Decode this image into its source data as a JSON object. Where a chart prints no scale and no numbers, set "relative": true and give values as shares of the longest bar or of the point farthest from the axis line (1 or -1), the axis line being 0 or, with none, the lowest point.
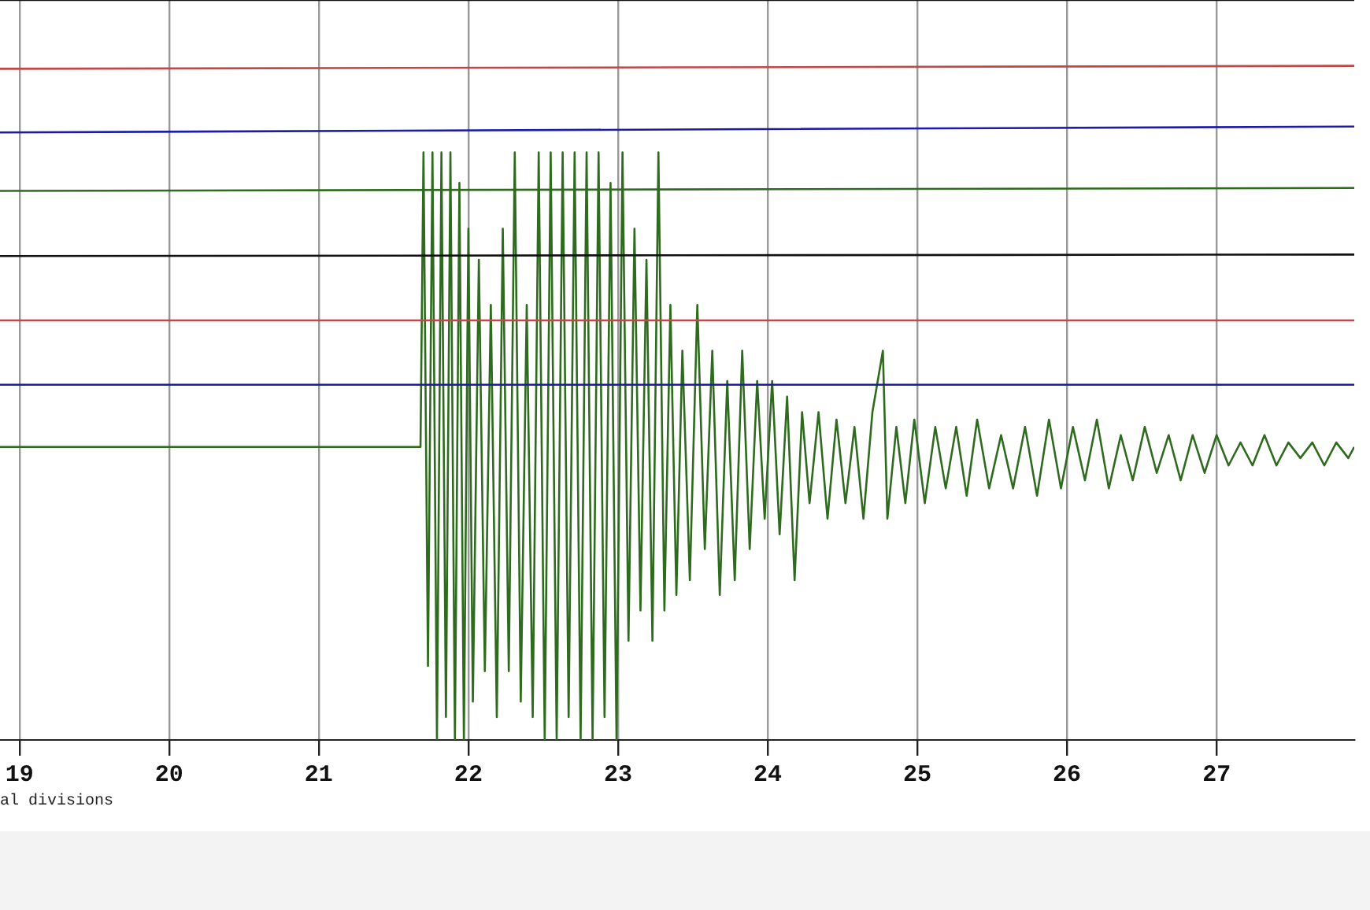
{
  "chart_data": {
    "type": "line",
    "relative": true,
    "grid": "x",
    "legend": false,
    "marker": "none",
    "xlim": [
      18.87,
      27.92
    ],
    "xticks": [
      19,
      20,
      21,
      22,
      23,
      24,
      25,
      26,
      27
    ],
    "annotations": [
      "al divisions"
    ],
    "series": [
      {
        "color": "#111111",
        "x": [
          18.87,
          23.4,
          27.92
        ],
        "values": [
          1,
          1,
          1
        ]
      },
      {
        "color": "#c04848",
        "x": [
          18.87,
          23.4,
          27.92
        ],
        "values": [
          0.907,
          0.909,
          0.911
        ]
      },
      {
        "color": "#1c1ca8",
        "x": [
          18.87,
          23.4,
          27.92
        ],
        "values": [
          0.821,
          0.825,
          0.829
        ]
      },
      {
        "color": "#2e6b1e",
        "x": [
          18.87,
          23.4,
          27.92
        ],
        "values": [
          0.742,
          0.744,
          0.746
        ]
      },
      {
        "color": "#111111",
        "x": [
          18.87,
          23.4,
          27.92
        ],
        "values": [
          0.654,
          0.655,
          0.656
        ]
      },
      {
        "color": "#c04848",
        "x": [
          18.87,
          23.4,
          27.92
        ],
        "values": [
          0.567,
          0.567,
          0.567
        ]
      },
      {
        "color": "#1c1ca8",
        "x": [
          18.87,
          23.4,
          27.92
        ],
        "values": [
          0.48,
          0.48,
          0.48
        ]
      },
      {
        "color": "#2e6b1e",
        "x": [
          18.87,
          21.68,
          21.7,
          21.73,
          21.76,
          21.79,
          21.82,
          21.85,
          21.88,
          21.91,
          21.94,
          21.97,
          22.0,
          22.03,
          22.07,
          22.11,
          22.15,
          22.19,
          22.23,
          22.27,
          22.31,
          22.35,
          22.39,
          22.43,
          22.47,
          22.51,
          22.55,
          22.59,
          22.63,
          22.67,
          22.71,
          22.75,
          22.79,
          22.83,
          22.87,
          22.91,
          22.95,
          22.99,
          23.03,
          23.07,
          23.11,
          23.15,
          23.19,
          23.23,
          23.27,
          23.31,
          23.35,
          23.39,
          23.43,
          23.48,
          23.53,
          23.58,
          23.63,
          23.68,
          23.73,
          23.78,
          23.83,
          23.88,
          23.93,
          23.98,
          24.03,
          24.08,
          24.13,
          24.18,
          24.23,
          24.28,
          24.34,
          24.4,
          24.46,
          24.52,
          24.58,
          24.64,
          24.7,
          24.77,
          24.8,
          24.86,
          24.92,
          24.98,
          25.05,
          25.12,
          25.19,
          25.26,
          25.33,
          25.4,
          25.48,
          25.56,
          25.64,
          25.72,
          25.8,
          25.88,
          25.96,
          26.04,
          26.12,
          26.2,
          26.28,
          26.36,
          26.44,
          26.52,
          26.6,
          26.68,
          26.76,
          26.84,
          26.92,
          27.0,
          27.08,
          27.16,
          27.24,
          27.32,
          27.4,
          27.48,
          27.56,
          27.64,
          27.72,
          27.8,
          27.88,
          27.92
        ],
        "values": [
          0.396,
          0.396,
          0.794,
          0.1,
          0.794,
          0,
          0.794,
          0.031,
          0.794,
          0,
          0.753,
          0,
          0.691,
          0.052,
          0.649,
          0.093,
          0.588,
          0.031,
          0.691,
          0.093,
          0.794,
          0.052,
          0.588,
          0.031,
          0.794,
          0,
          0.794,
          0,
          0.794,
          0.031,
          0.794,
          0,
          0.794,
          0,
          0.794,
          0.031,
          0.753,
          0,
          0.794,
          0.134,
          0.691,
          0.175,
          0.649,
          0.134,
          0.794,
          0.175,
          0.588,
          0.196,
          0.526,
          0.216,
          0.588,
          0.258,
          0.526,
          0.196,
          0.485,
          0.216,
          0.526,
          0.258,
          0.485,
          0.299,
          0.485,
          0.278,
          0.464,
          0.216,
          0.443,
          0.32,
          0.443,
          0.299,
          0.433,
          0.32,
          0.423,
          0.299,
          0.443,
          0.526,
          0.299,
          0.423,
          0.32,
          0.433,
          0.32,
          0.423,
          0.34,
          0.423,
          0.33,
          0.433,
          0.34,
          0.412,
          0.34,
          0.423,
          0.33,
          0.433,
          0.34,
          0.423,
          0.351,
          0.433,
          0.34,
          0.412,
          0.351,
          0.423,
          0.361,
          0.412,
          0.351,
          0.412,
          0.361,
          0.412,
          0.371,
          0.402,
          0.371,
          0.412,
          0.371,
          0.402,
          0.381,
          0.402,
          0.371,
          0.402,
          0.381,
          0.396
        ]
      }
    ]
  }
}
